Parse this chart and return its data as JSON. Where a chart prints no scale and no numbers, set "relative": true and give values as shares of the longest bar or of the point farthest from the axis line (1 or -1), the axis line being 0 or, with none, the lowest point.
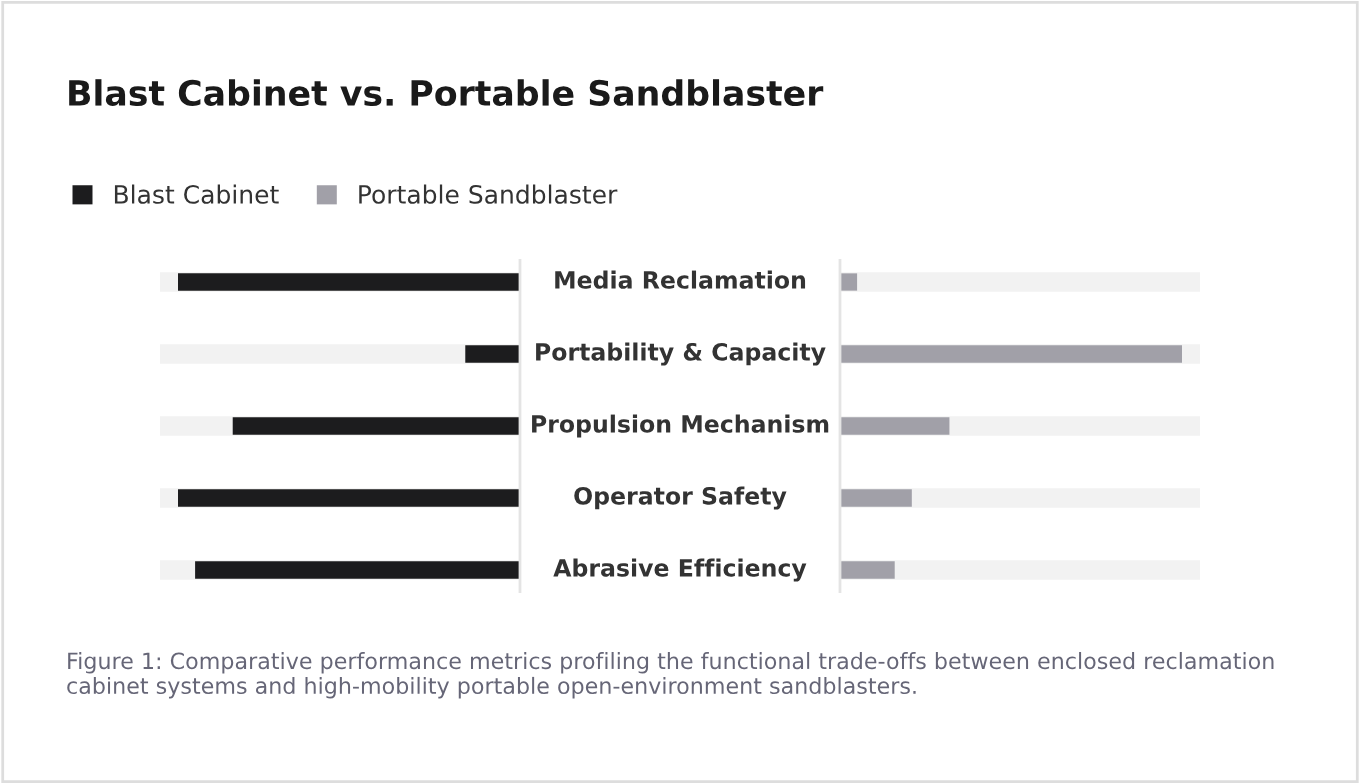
{
  "chart_data": [
    {
      "type": "bar",
      "orientation": "horizontal",
      "relative": true,
      "title": "Blast Cabinet vs. Portable Sandblaster",
      "categories": [
        "Media Reclamation",
        "Portability & Capacity",
        "Propulsion Mechanism",
        "Operator Safety",
        "Abrasive Efficiency"
      ],
      "series": [
        {
          "name": "Blast Cabinet",
          "color": "#1c1c1e",
          "values": [
            1,
            0.16,
            0.84,
            1,
            0.95
          ]
        }
      ],
      "legend": "top left",
      "grid": "y"
    },
    {
      "type": "bar",
      "orientation": "horizontal",
      "relative": true,
      "grid": "y",
      "categories": [
        null,
        null,
        null,
        null,
        null
      ],
      "series": [
        {
          "name": "Portable Sandblaster",
          "color": "#a1a0a8",
          "values": [
            0.05,
            1,
            0.32,
            0.21,
            0.16
          ]
        }
      ],
      "annotations": [
        "Figure 1: Comparative performance metrics profiling the functional trade-offs between enclosed reclamation cabinet systems and high-mobility portable open-environment sandblasters."
      ]
    }
  ]
}
